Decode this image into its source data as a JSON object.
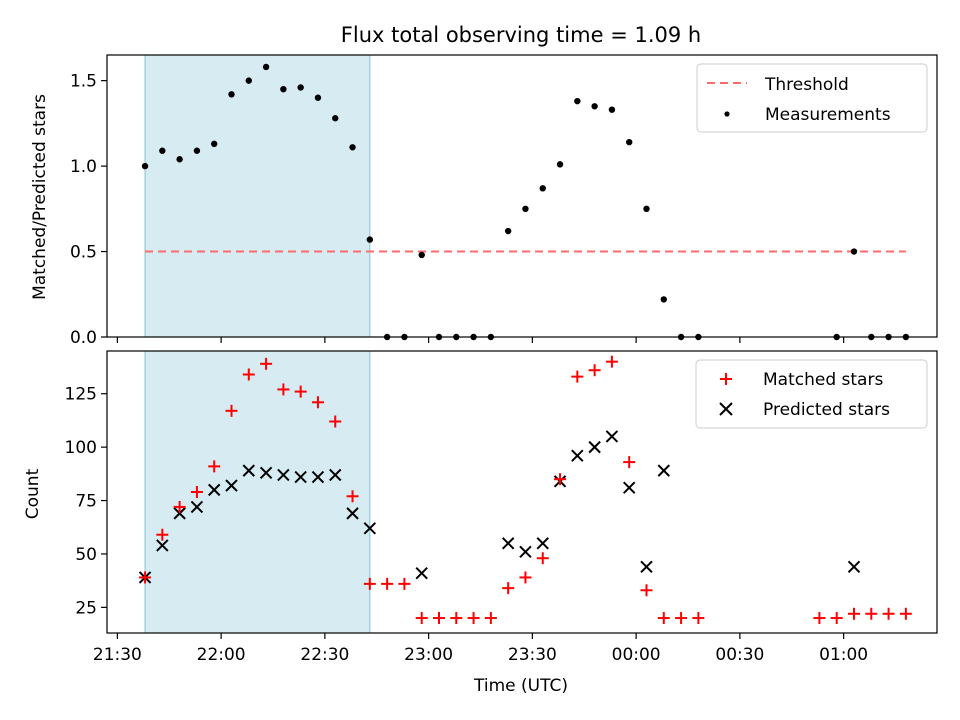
{
  "figure": {
    "title": "Flux total observing time = 1.09 h"
  },
  "chart_data": [
    {
      "type": "scatter",
      "panel": "top",
      "title": "Flux total observing time = 1.09 h",
      "xlabel": "",
      "ylabel": "Matched/Predicted stars",
      "xlim": [
        "21:27",
        "01:27"
      ],
      "ylim": [
        0,
        1.65
      ],
      "yticks": [
        "0.0",
        "0.5",
        "1.0",
        "1.5"
      ],
      "legend_position": "top-right",
      "shaded_interval": {
        "start": "21:38",
        "end": "22:43",
        "color": "#add8e6"
      },
      "series": [
        {
          "name": "Threshold",
          "kind": "dashed-line",
          "color": "#ff6b6b",
          "x": [
            "21:38",
            "01:18"
          ],
          "y": [
            0.5,
            0.5
          ]
        },
        {
          "name": "Measurements",
          "kind": "points",
          "color": "#000000",
          "x": [
            "21:38",
            "21:43",
            "21:48",
            "21:53",
            "21:58",
            "22:03",
            "22:08",
            "22:13",
            "22:18",
            "22:23",
            "22:28",
            "22:33",
            "22:38",
            "22:43",
            "22:48",
            "22:53",
            "22:58",
            "23:03",
            "23:08",
            "23:13",
            "23:18",
            "23:23",
            "23:28",
            "23:33",
            "23:38",
            "23:43",
            "23:48",
            "23:53",
            "23:58",
            "00:03",
            "00:08",
            "00:13",
            "00:18",
            "00:58",
            "01:03",
            "01:08",
            "01:13",
            "01:18"
          ],
          "y": [
            1.0,
            1.09,
            1.04,
            1.09,
            1.13,
            1.42,
            1.5,
            1.58,
            1.45,
            1.46,
            1.4,
            1.28,
            1.11,
            0.57,
            0.0,
            0.0,
            0.48,
            0.0,
            0.0,
            0.0,
            0.0,
            0.62,
            0.75,
            0.87,
            1.01,
            1.38,
            1.35,
            1.33,
            1.14,
            0.75,
            0.22,
            0.0,
            0.0,
            0.0,
            0.5,
            0.0,
            0.0,
            0.0
          ]
        }
      ]
    },
    {
      "type": "scatter",
      "panel": "bottom",
      "xlabel": "Time (UTC)",
      "ylabel": "Count",
      "xlim": [
        "21:27",
        "01:27"
      ],
      "xticks": [
        "21:30",
        "22:00",
        "22:30",
        "23:00",
        "23:30",
        "00:00",
        "00:30",
        "01:00"
      ],
      "ylim": [
        13,
        145
      ],
      "yticks": [
        "25",
        "50",
        "75",
        "100",
        "125"
      ],
      "legend_position": "top-right",
      "shaded_interval": {
        "start": "21:38",
        "end": "22:43",
        "color": "#add8e6"
      },
      "series": [
        {
          "name": "Matched stars",
          "marker": "plus",
          "color": "#ff0000",
          "x": [
            "21:38",
            "21:43",
            "21:48",
            "21:53",
            "21:58",
            "22:03",
            "22:08",
            "22:13",
            "22:18",
            "22:23",
            "22:28",
            "22:33",
            "22:38",
            "22:43",
            "22:48",
            "22:53",
            "22:58",
            "23:03",
            "23:08",
            "23:13",
            "23:18",
            "23:23",
            "23:28",
            "23:33",
            "23:38",
            "23:43",
            "23:48",
            "23:53",
            "23:58",
            "00:03",
            "00:08",
            "00:13",
            "00:18",
            "00:53",
            "00:58",
            "01:03",
            "01:08",
            "01:13",
            "01:18"
          ],
          "y": [
            39,
            59,
            72,
            79,
            91,
            117,
            134,
            139,
            127,
            126,
            121,
            112,
            77,
            36,
            36,
            36,
            20,
            20,
            20,
            20,
            20,
            34,
            39,
            48,
            85,
            133,
            136,
            140,
            93,
            33,
            20,
            20,
            20,
            20,
            20,
            22,
            22,
            22,
            22
          ]
        },
        {
          "name": "Predicted stars",
          "marker": "x",
          "color": "#000000",
          "x": [
            "21:38",
            "21:43",
            "21:48",
            "21:53",
            "21:58",
            "22:03",
            "22:08",
            "22:13",
            "22:18",
            "22:23",
            "22:28",
            "22:33",
            "22:38",
            "22:43",
            "22:58",
            "23:23",
            "23:28",
            "23:33",
            "23:38",
            "23:43",
            "23:48",
            "23:53",
            "23:58",
            "00:03",
            "00:08",
            "01:03"
          ],
          "y": [
            39,
            54,
            69,
            72,
            80,
            82,
            89,
            88,
            87,
            86,
            86,
            87,
            69,
            62,
            41,
            55,
            51,
            55,
            84,
            96,
            100,
            105,
            81,
            44,
            89,
            44
          ]
        }
      ]
    }
  ]
}
